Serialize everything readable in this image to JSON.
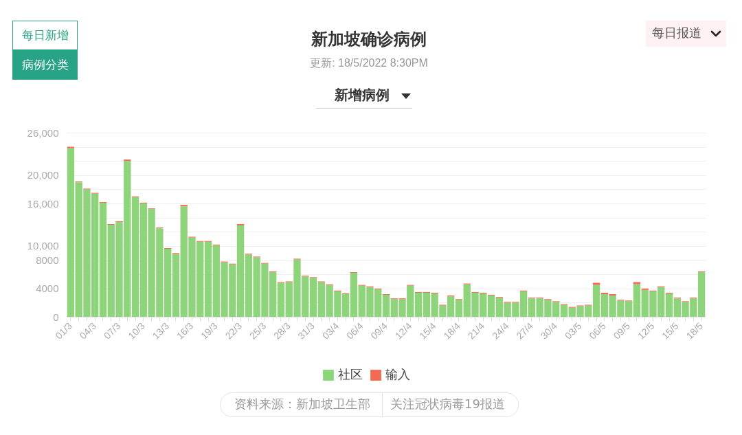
{
  "chart_data": {
    "type": "bar",
    "stacked": true,
    "title": "新加坡确诊病例",
    "subtitle": "更新: 18/5/2022 8:30PM",
    "categories": [
      "01/3",
      null,
      null,
      "04/3",
      null,
      null,
      "07/3",
      null,
      null,
      "10/3",
      null,
      null,
      "13/3",
      null,
      null,
      "16/3",
      null,
      null,
      "19/3",
      null,
      null,
      "22/3",
      null,
      null,
      "25/3",
      null,
      null,
      "28/3",
      null,
      null,
      "31/3",
      null,
      null,
      "03/4",
      null,
      null,
      "06/4",
      null,
      null,
      "09/4",
      null,
      null,
      "12/4",
      null,
      null,
      "15/4",
      null,
      null,
      "18/4",
      null,
      null,
      "21/4",
      null,
      null,
      "24/4",
      null,
      null,
      "27/4",
      null,
      null,
      "30/4",
      null,
      null,
      "03/5",
      null,
      null,
      "06/5",
      null,
      null,
      "09/5",
      null,
      null,
      "12/5",
      null,
      null,
      "15/5",
      null,
      null,
      "18/5"
    ],
    "series": [
      {
        "name": "社区",
        "color": "#8ed47b",
        "values": [
          23800,
          19000,
          18000,
          17400,
          16100,
          13000,
          13400,
          22000,
          16900,
          16000,
          15200,
          12500,
          9600,
          8900,
          15600,
          11200,
          10600,
          10600,
          10100,
          7700,
          7400,
          12900,
          8800,
          8400,
          7500,
          6300,
          4800,
          4900,
          8100,
          5700,
          5500,
          4900,
          4500,
          3600,
          3200,
          6200,
          4400,
          4200,
          3900,
          3100,
          2500,
          2500,
          4400,
          3400,
          3400,
          3300,
          1600,
          2900,
          2400,
          4600,
          3400,
          3300,
          3000,
          2700,
          2000,
          2000,
          3600,
          2600,
          2600,
          2400,
          2100,
          1700,
          1300,
          1500,
          1600,
          4500,
          3200,
          3000,
          2300,
          2200,
          4600,
          3800,
          3600,
          4200,
          3300,
          2600,
          2100,
          2600,
          6300
        ]
      },
      {
        "name": "输入",
        "color": "#f26a52",
        "values": [
          200,
          100,
          100,
          100,
          100,
          100,
          100,
          200,
          100,
          100,
          100,
          100,
          100,
          100,
          200,
          100,
          100,
          100,
          100,
          100,
          100,
          200,
          100,
          100,
          100,
          100,
          100,
          100,
          100,
          100,
          100,
          100,
          100,
          100,
          100,
          100,
          100,
          100,
          100,
          100,
          100,
          100,
          100,
          100,
          100,
          100,
          100,
          100,
          100,
          100,
          100,
          100,
          100,
          100,
          100,
          100,
          100,
          100,
          100,
          100,
          100,
          100,
          100,
          100,
          100,
          300,
          200,
          200,
          100,
          100,
          300,
          200,
          100,
          100,
          100,
          100,
          100,
          100,
          100
        ]
      }
    ],
    "ylim": [
      0,
      26000
    ],
    "yticks": [
      0,
      {
        "value": 2000,
        "label": null
      },
      4000,
      {
        "value": 6000,
        "label": null
      },
      8000,
      {
        "value": 10000,
        "label": "10,000"
      },
      {
        "value": 12000,
        "label": null
      },
      {
        "value": 14000,
        "label": null
      },
      {
        "value": 16000,
        "label": "16,000"
      },
      {
        "value": 18000,
        "label": null
      },
      {
        "value": 20000,
        "label": "20,000"
      },
      {
        "value": 22000,
        "label": null
      },
      {
        "value": 24000,
        "label": null
      },
      {
        "value": 26000,
        "label": "26,000"
      }
    ],
    "grid": "y",
    "legend": "bottom",
    "annotations": [
      "每日新增",
      "病例分类",
      "每日报道",
      "新增病例",
      "资料来源：新加坡卫生部",
      "关注冠状病毒19报道"
    ]
  }
}
